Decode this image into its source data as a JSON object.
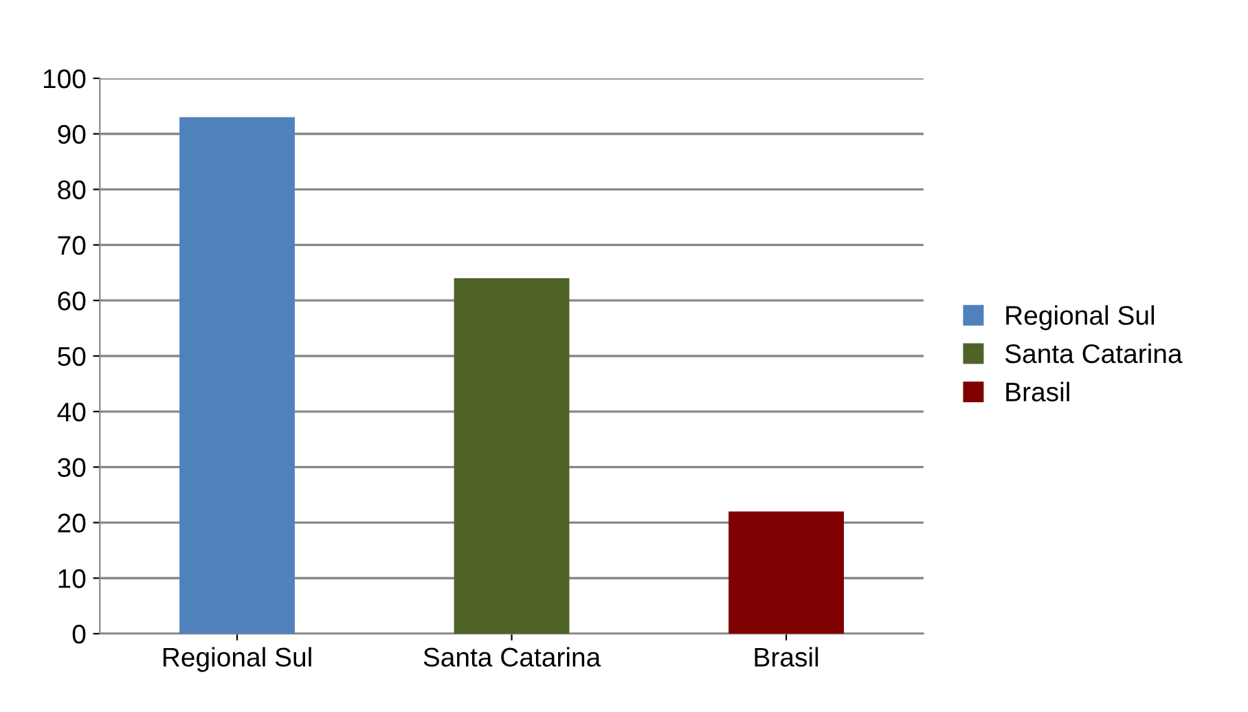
{
  "chart_data": {
    "type": "bar",
    "categories": [
      "Regional Sul",
      "Santa Catarina",
      "Brasil"
    ],
    "series": [
      {
        "name": "Regional Sul",
        "color": "#4f81bd",
        "values": [
          93,
          null,
          null
        ]
      },
      {
        "name": "Santa Catarina",
        "color": "#4f6228",
        "values": [
          null,
          64,
          null
        ]
      },
      {
        "name": "Brasil",
        "color": "#7f0000",
        "values": [
          null,
          null,
          22
        ]
      }
    ],
    "ylim": [
      0,
      100
    ],
    "yticks": [
      0,
      10,
      20,
      30,
      40,
      50,
      60,
      70,
      80,
      90,
      100
    ],
    "grid": "y",
    "legend": "right"
  }
}
